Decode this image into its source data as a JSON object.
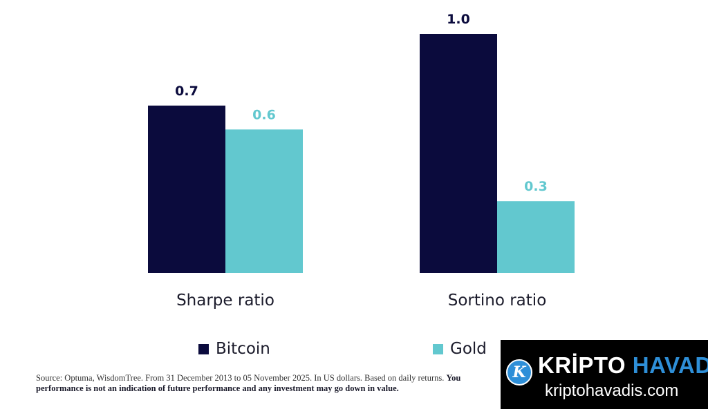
{
  "chart_data": {
    "type": "bar",
    "categories": [
      "Sharpe ratio",
      "Sortino ratio"
    ],
    "series": [
      {
        "name": "Bitcoin",
        "values": [
          0.7,
          1.0
        ],
        "labels": [
          "0.7",
          "1.0"
        ],
        "color": "#0b0b3d"
      },
      {
        "name": "Gold",
        "values": [
          0.6,
          0.3
        ],
        "labels": [
          "0.6",
          "0.3"
        ],
        "color": "#62c8cf"
      }
    ],
    "ylim": [
      0,
      1.0
    ],
    "grid": false,
    "legend_position": "bottom"
  },
  "source": {
    "text_line1": "Source: Optuma, WisdomTree. From 31 December 2013 to 05 November 2025. In US dollars. Based on daily returns. ",
    "bold_part1": "You",
    "bold_line2": "performance is not an indication of future performance and any investment may go down in value."
  },
  "watermark": {
    "logo_letter": "K",
    "title_word1": "KRİPTO",
    "title_word2": "HAVADİS",
    "url": "kriptohavadis.com",
    "colors": {
      "background": "#000000",
      "accent": "#2e8fd8"
    }
  }
}
